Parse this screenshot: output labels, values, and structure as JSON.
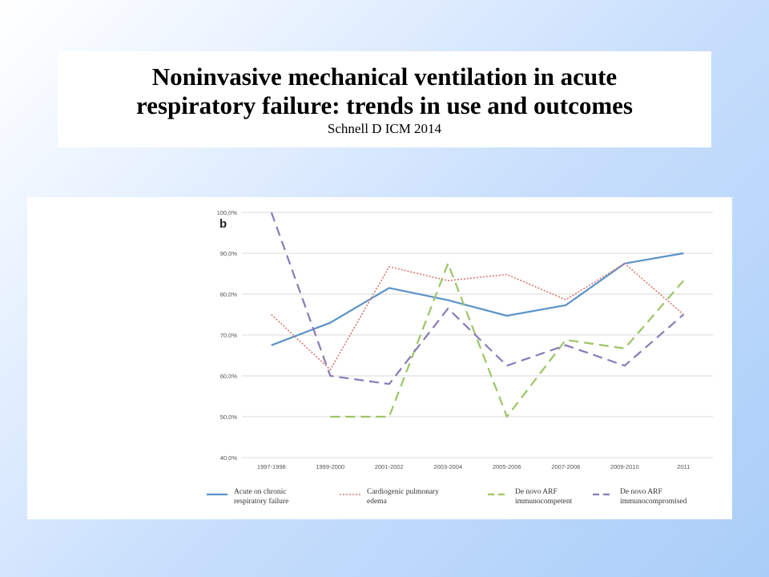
{
  "title": {
    "line1": "Noninvasive mechanical ventilation in acute",
    "line2": "respiratory failure: trends in use and outcomes",
    "subtitle": "Schnell D ICM 2014"
  },
  "chart_data": {
    "type": "line",
    "panel_label": "b",
    "categories": [
      "1997-1998",
      "1999-2000",
      "2001-2002",
      "2003-2004",
      "2005-2006",
      "2007-2008",
      "2009-2010",
      "2011"
    ],
    "y_ticks": [
      "40,0%",
      "50,0%",
      "60,0%",
      "70,0%",
      "80,0%",
      "90,0%",
      "100,0%"
    ],
    "ylim": [
      40,
      100
    ],
    "grid": true,
    "legend_position": "bottom",
    "series": [
      {
        "name_line1": "Acute on chronic",
        "name_line2": "respiratory failure",
        "color": "#5b93c8",
        "style": "solid",
        "values": [
          67.5,
          73,
          81.5,
          78.5,
          74.7,
          77.3,
          87.5,
          90
        ]
      },
      {
        "name_line1": "Cardiogenic pulmonary",
        "name_line2": "edema",
        "color": "#d77670",
        "style": "dotted",
        "values": [
          75,
          61.5,
          86.7,
          83.3,
          84.8,
          78.6,
          87.5,
          75
        ]
      },
      {
        "name_line1": "De novo ARF",
        "name_line2": "immunocompetent",
        "color": "#9ec466",
        "style": "dashed",
        "values": [
          null,
          50,
          50,
          87.5,
          50,
          68.8,
          66.7,
          83.3
        ]
      },
      {
        "name_line1": "De novo ARF",
        "name_line2": "immunocompromised",
        "color": "#8a7ab8",
        "style": "dashed",
        "values": [
          100,
          60,
          58,
          76.5,
          62.5,
          67.5,
          62.5,
          75
        ]
      }
    ]
  }
}
